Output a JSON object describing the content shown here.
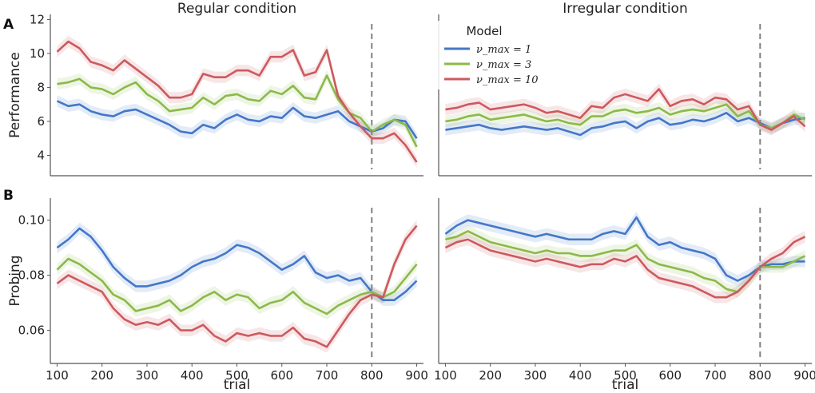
{
  "figure": {
    "letters": [
      "A",
      "B"
    ],
    "xlabel": "trial"
  },
  "legend": {
    "title": "Model",
    "entries": [
      "ν_max = 1",
      "ν_max = 3",
      "ν_max = 10"
    ]
  },
  "colors": {
    "blue": "#4477c8",
    "green": "#8cb94a",
    "red": "#cc5a5e",
    "axis": "#555555",
    "dashed": "#808080"
  },
  "chart_data": [
    {
      "type": "line",
      "panel": "A-regular",
      "title": "Regular condition",
      "xlabel": "",
      "ylabel": "Performance",
      "xlim": [
        85,
        915
      ],
      "ylim": [
        2.8,
        12.3
      ],
      "xticks": [],
      "yticks": [
        4,
        6,
        8,
        10,
        12
      ],
      "vline": 800,
      "series": [
        {
          "name": "ν_max = 1",
          "color": "blue",
          "x": [
            100,
            125,
            150,
            175,
            200,
            225,
            250,
            275,
            300,
            325,
            350,
            375,
            400,
            425,
            450,
            475,
            500,
            525,
            550,
            575,
            600,
            625,
            650,
            675,
            700,
            725,
            750,
            775,
            800,
            825,
            850,
            875,
            900
          ],
          "values": [
            7.2,
            6.9,
            7.0,
            6.6,
            6.4,
            6.3,
            6.6,
            6.7,
            6.4,
            6.1,
            5.8,
            5.4,
            5.3,
            5.8,
            5.6,
            6.1,
            6.4,
            6.1,
            6.0,
            6.3,
            6.2,
            6.8,
            6.3,
            6.2,
            6.4,
            6.6,
            6.0,
            5.7,
            5.4,
            5.6,
            6.1,
            6.0,
            5.0
          ]
        },
        {
          "name": "ν_max = 3",
          "color": "green",
          "x": [
            100,
            125,
            150,
            175,
            200,
            225,
            250,
            275,
            300,
            325,
            350,
            375,
            400,
            425,
            450,
            475,
            500,
            525,
            550,
            575,
            600,
            625,
            650,
            675,
            700,
            725,
            750,
            775,
            800,
            825,
            850,
            875,
            900
          ],
          "values": [
            8.2,
            8.3,
            8.5,
            8.0,
            7.9,
            7.6,
            8.0,
            8.3,
            7.6,
            7.2,
            6.6,
            6.7,
            6.8,
            7.4,
            7.0,
            7.5,
            7.6,
            7.3,
            7.2,
            7.8,
            7.6,
            8.1,
            7.4,
            7.3,
            8.7,
            7.3,
            6.5,
            6.2,
            5.4,
            5.8,
            6.1,
            5.8,
            4.5
          ]
        },
        {
          "name": "ν_max = 10",
          "color": "red",
          "x": [
            100,
            125,
            150,
            175,
            200,
            225,
            250,
            275,
            300,
            325,
            350,
            375,
            400,
            425,
            450,
            475,
            500,
            525,
            550,
            575,
            600,
            625,
            650,
            675,
            700,
            725,
            750,
            775,
            800,
            825,
            850,
            875,
            900
          ],
          "values": [
            10.1,
            10.7,
            10.3,
            9.5,
            9.3,
            9.0,
            9.6,
            9.1,
            8.6,
            8.1,
            7.4,
            7.4,
            7.6,
            8.8,
            8.6,
            8.6,
            9.0,
            9.0,
            8.7,
            9.8,
            9.8,
            10.2,
            8.7,
            8.9,
            10.2,
            7.5,
            6.5,
            5.7,
            5.0,
            5.0,
            5.3,
            4.6,
            3.6
          ]
        }
      ]
    },
    {
      "type": "line",
      "panel": "A-irregular",
      "title": "Irregular condition",
      "xlabel": "",
      "ylabel": "",
      "xlim": [
        85,
        915
      ],
      "ylim": [
        2.8,
        12.3
      ],
      "xticks": [],
      "yticks": [],
      "vline": 800,
      "series": [
        {
          "name": "ν_max = 1",
          "color": "blue",
          "x": [
            100,
            125,
            150,
            175,
            200,
            225,
            250,
            275,
            300,
            325,
            350,
            375,
            400,
            425,
            450,
            475,
            500,
            525,
            550,
            575,
            600,
            625,
            650,
            675,
            700,
            725,
            750,
            775,
            800,
            825,
            850,
            875,
            900
          ],
          "values": [
            5.5,
            5.6,
            5.7,
            5.8,
            5.6,
            5.5,
            5.6,
            5.7,
            5.6,
            5.5,
            5.6,
            5.4,
            5.2,
            5.6,
            5.7,
            5.9,
            6.0,
            5.6,
            6.0,
            6.2,
            5.8,
            5.9,
            6.1,
            6.0,
            6.2,
            6.5,
            6.0,
            6.2,
            5.9,
            5.6,
            5.9,
            6.1,
            6.2
          ]
        },
        {
          "name": "ν_max = 3",
          "color": "green",
          "x": [
            100,
            125,
            150,
            175,
            200,
            225,
            250,
            275,
            300,
            325,
            350,
            375,
            400,
            425,
            450,
            475,
            500,
            525,
            550,
            575,
            600,
            625,
            650,
            675,
            700,
            725,
            750,
            775,
            800,
            825,
            850,
            875,
            900
          ],
          "values": [
            6.0,
            6.1,
            6.3,
            6.4,
            6.1,
            6.2,
            6.3,
            6.4,
            6.2,
            6.0,
            6.1,
            5.9,
            5.8,
            6.3,
            6.3,
            6.6,
            6.7,
            6.5,
            6.6,
            6.8,
            6.4,
            6.6,
            6.7,
            6.6,
            6.8,
            7.0,
            6.3,
            6.6,
            5.8,
            5.6,
            5.9,
            6.4,
            6.1
          ]
        },
        {
          "name": "ν_max = 10",
          "color": "red",
          "x": [
            100,
            125,
            150,
            175,
            200,
            225,
            250,
            275,
            300,
            325,
            350,
            375,
            400,
            425,
            450,
            475,
            500,
            525,
            550,
            575,
            600,
            625,
            650,
            675,
            700,
            725,
            750,
            775,
            800,
            825,
            850,
            875,
            900
          ],
          "values": [
            6.7,
            6.8,
            7.0,
            7.1,
            6.7,
            6.8,
            6.9,
            7.0,
            6.8,
            6.5,
            6.6,
            6.4,
            6.2,
            6.9,
            6.8,
            7.4,
            7.6,
            7.4,
            7.2,
            7.9,
            6.9,
            7.2,
            7.3,
            7.0,
            7.4,
            7.3,
            6.7,
            6.9,
            5.8,
            5.5,
            5.9,
            6.3,
            5.7
          ]
        }
      ]
    },
    {
      "type": "line",
      "panel": "B-regular",
      "title": "",
      "xlabel": "trial",
      "ylabel": "Probing",
      "xlim": [
        85,
        915
      ],
      "ylim": [
        0.048,
        0.108
      ],
      "xticks": [
        100,
        200,
        300,
        400,
        500,
        600,
        700,
        800,
        900
      ],
      "yticks": [
        0.06,
        0.08,
        0.1
      ],
      "ytick_labels": [
        "0.06",
        "0.08",
        "0.10"
      ],
      "vline": 800,
      "series": [
        {
          "name": "ν_max = 1",
          "color": "blue",
          "x": [
            100,
            125,
            150,
            175,
            200,
            225,
            250,
            275,
            300,
            325,
            350,
            375,
            400,
            425,
            450,
            475,
            500,
            525,
            550,
            575,
            600,
            625,
            650,
            675,
            700,
            725,
            750,
            775,
            800,
            825,
            850,
            875,
            900
          ],
          "values": [
            0.09,
            0.093,
            0.097,
            0.094,
            0.089,
            0.083,
            0.079,
            0.076,
            0.076,
            0.077,
            0.078,
            0.08,
            0.083,
            0.085,
            0.086,
            0.088,
            0.091,
            0.09,
            0.088,
            0.085,
            0.082,
            0.084,
            0.087,
            0.081,
            0.079,
            0.08,
            0.078,
            0.079,
            0.074,
            0.071,
            0.071,
            0.074,
            0.078
          ]
        },
        {
          "name": "ν_max = 3",
          "color": "green",
          "x": [
            100,
            125,
            150,
            175,
            200,
            225,
            250,
            275,
            300,
            325,
            350,
            375,
            400,
            425,
            450,
            475,
            500,
            525,
            550,
            575,
            600,
            625,
            650,
            675,
            700,
            725,
            750,
            775,
            800,
            825,
            850,
            875,
            900
          ],
          "values": [
            0.082,
            0.086,
            0.084,
            0.081,
            0.078,
            0.073,
            0.071,
            0.067,
            0.068,
            0.069,
            0.071,
            0.067,
            0.069,
            0.072,
            0.074,
            0.071,
            0.073,
            0.072,
            0.068,
            0.07,
            0.071,
            0.074,
            0.07,
            0.068,
            0.066,
            0.069,
            0.071,
            0.073,
            0.074,
            0.072,
            0.074,
            0.079,
            0.084
          ]
        },
        {
          "name": "ν_max = 10",
          "color": "red",
          "x": [
            100,
            125,
            150,
            175,
            200,
            225,
            250,
            275,
            300,
            325,
            350,
            375,
            400,
            425,
            450,
            475,
            500,
            525,
            550,
            575,
            600,
            625,
            650,
            675,
            700,
            725,
            750,
            775,
            800,
            825,
            850,
            875,
            900
          ],
          "values": [
            0.077,
            0.08,
            0.078,
            0.076,
            0.074,
            0.068,
            0.064,
            0.062,
            0.063,
            0.062,
            0.064,
            0.06,
            0.06,
            0.062,
            0.058,
            0.056,
            0.059,
            0.058,
            0.059,
            0.058,
            0.058,
            0.061,
            0.057,
            0.056,
            0.054,
            0.06,
            0.066,
            0.071,
            0.073,
            0.072,
            0.084,
            0.093,
            0.098
          ]
        }
      ]
    },
    {
      "type": "line",
      "panel": "B-irregular",
      "title": "",
      "xlabel": "trial",
      "ylabel": "",
      "xlim": [
        85,
        915
      ],
      "ylim": [
        0.048,
        0.108
      ],
      "xticks": [
        100,
        200,
        300,
        400,
        500,
        600,
        700,
        800,
        900
      ],
      "yticks": [],
      "vline": 800,
      "series": [
        {
          "name": "ν_max = 1",
          "color": "blue",
          "x": [
            100,
            125,
            150,
            175,
            200,
            225,
            250,
            275,
            300,
            325,
            350,
            375,
            400,
            425,
            450,
            475,
            500,
            525,
            550,
            575,
            600,
            625,
            650,
            675,
            700,
            725,
            750,
            775,
            800,
            825,
            850,
            875,
            900
          ],
          "values": [
            0.095,
            0.098,
            0.1,
            0.099,
            0.098,
            0.097,
            0.096,
            0.095,
            0.094,
            0.095,
            0.094,
            0.093,
            0.093,
            0.093,
            0.095,
            0.096,
            0.095,
            0.101,
            0.094,
            0.091,
            0.092,
            0.09,
            0.089,
            0.088,
            0.086,
            0.08,
            0.078,
            0.08,
            0.083,
            0.084,
            0.084,
            0.085,
            0.085
          ]
        },
        {
          "name": "ν_max = 3",
          "color": "green",
          "x": [
            100,
            125,
            150,
            175,
            200,
            225,
            250,
            275,
            300,
            325,
            350,
            375,
            400,
            425,
            450,
            475,
            500,
            525,
            550,
            575,
            600,
            625,
            650,
            675,
            700,
            725,
            750,
            775,
            800,
            825,
            850,
            875,
            900
          ],
          "values": [
            0.093,
            0.094,
            0.096,
            0.094,
            0.092,
            0.091,
            0.09,
            0.089,
            0.088,
            0.089,
            0.088,
            0.088,
            0.087,
            0.087,
            0.088,
            0.089,
            0.089,
            0.091,
            0.086,
            0.084,
            0.083,
            0.082,
            0.081,
            0.079,
            0.078,
            0.075,
            0.074,
            0.078,
            0.083,
            0.083,
            0.083,
            0.085,
            0.087
          ]
        },
        {
          "name": "ν_max = 10",
          "color": "red",
          "x": [
            100,
            125,
            150,
            175,
            200,
            225,
            250,
            275,
            300,
            325,
            350,
            375,
            400,
            425,
            450,
            475,
            500,
            525,
            550,
            575,
            600,
            625,
            650,
            675,
            700,
            725,
            750,
            775,
            800,
            825,
            850,
            875,
            900
          ],
          "values": [
            0.09,
            0.092,
            0.093,
            0.091,
            0.089,
            0.088,
            0.087,
            0.086,
            0.085,
            0.086,
            0.085,
            0.084,
            0.083,
            0.084,
            0.084,
            0.086,
            0.085,
            0.087,
            0.082,
            0.079,
            0.078,
            0.077,
            0.076,
            0.074,
            0.072,
            0.072,
            0.074,
            0.078,
            0.083,
            0.086,
            0.088,
            0.092,
            0.094
          ]
        }
      ]
    }
  ]
}
